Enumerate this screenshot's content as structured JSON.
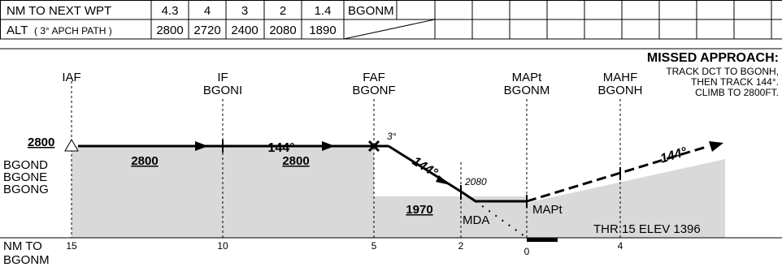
{
  "table": {
    "rows": [
      [
        "NM TO NEXT WPT",
        "4.3",
        "4",
        "3",
        "2",
        "1.4",
        "BGONM"
      ],
      [
        "ALT",
        "( 3° APCH PATH )",
        "2800",
        "2720",
        "2400",
        "2080",
        "1890"
      ]
    ]
  },
  "missed_approach": {
    "title": "MISSED APPROACH:",
    "lines": [
      "TRACK DCT TO BGONH,",
      "THEN TRACK 144°.",
      "CLIMB TO 2800FT."
    ]
  },
  "fixes": [
    {
      "role": "IAF"
    },
    {
      "role": "IF",
      "name": "BGONI"
    },
    {
      "role": "FAF",
      "name": "BGONF"
    },
    {
      "role": "MAPt",
      "name": "BGONM"
    },
    {
      "role": "MAHF",
      "name": "BGONH"
    }
  ],
  "profile": {
    "iaf_alt": "2800",
    "iaf_fixes": [
      "BGOND",
      "BGONE",
      "BGONG"
    ],
    "seg1_alt": "2800",
    "seg1_track": "144°",
    "seg2_alt": "2800",
    "glide": "3°",
    "final_track": "144°",
    "sdf_alt": "2080",
    "mda_value": "1970",
    "mda": "MDA",
    "mapt": "MAPt",
    "missed_track": "144°",
    "threshold": "THR 15 ELEV 1396"
  },
  "axis": {
    "title": [
      "NM TO",
      "BGONM"
    ],
    "ticks": [
      "15",
      "10",
      "5",
      "2",
      "0",
      "4"
    ]
  }
}
